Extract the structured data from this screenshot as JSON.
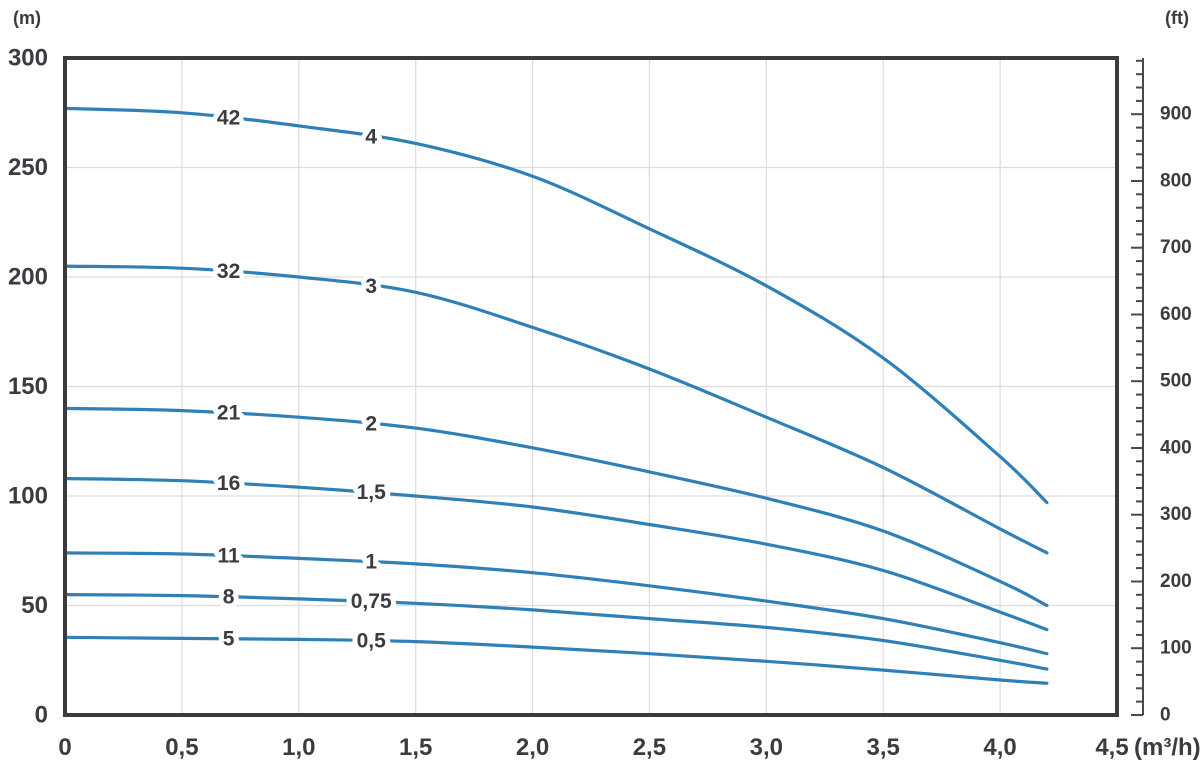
{
  "units": {
    "left_axis": "(m)",
    "right_axis": "(ft)",
    "x_axis": "(m³/h)"
  },
  "colors": {
    "curve": "#2e80b7",
    "frame": "#3a3a3f",
    "grid": "#dcdcdc",
    "right_axis": "#48484d",
    "text": "#3b3b42"
  },
  "chart_data": {
    "type": "line",
    "title": "",
    "xlabel": "(m³/h)",
    "ylabel_left": "(m)",
    "ylabel_right": "(ft)",
    "xlim": [
      0,
      4.5
    ],
    "ylim_m": [
      0,
      300
    ],
    "ylim_ft": [
      0,
      984
    ],
    "grid": true,
    "x_ticks": [
      {
        "v": 0,
        "label": "0"
      },
      {
        "v": 0.5,
        "label": "0,5"
      },
      {
        "v": 1.0,
        "label": "1,0"
      },
      {
        "v": 1.5,
        "label": "1,5"
      },
      {
        "v": 2.0,
        "label": "2,0"
      },
      {
        "v": 2.5,
        "label": "2,5"
      },
      {
        "v": 3.0,
        "label": "3,0"
      },
      {
        "v": 3.5,
        "label": "3,5"
      },
      {
        "v": 4.0,
        "label": "4,0"
      },
      {
        "v": 4.5,
        "label": "4,5"
      }
    ],
    "y_ticks_m": [
      {
        "v": 0,
        "label": "0"
      },
      {
        "v": 50,
        "label": "50"
      },
      {
        "v": 100,
        "label": "100"
      },
      {
        "v": 150,
        "label": "150"
      },
      {
        "v": 200,
        "label": "200"
      },
      {
        "v": 250,
        "label": "250"
      },
      {
        "v": 300,
        "label": "300"
      }
    ],
    "y_ticks_ft_major": [
      0,
      100,
      200,
      300,
      400,
      500,
      600,
      700,
      800,
      900
    ],
    "y_ticks_ft_minor_step": 20,
    "y_ticks_ft_minor_max": 980,
    "grid_x": [
      0.5,
      1.0,
      1.5,
      2.0,
      2.5,
      3.0,
      3.5,
      4.0
    ],
    "grid_y_m": [
      50,
      100,
      150,
      200,
      250
    ],
    "label_positions": {
      "stages_x": 0.7,
      "power_x": 1.31
    },
    "series": [
      {
        "stages_label": "42",
        "power_label": "4",
        "points": [
          [
            0,
            277
          ],
          [
            0.5,
            275
          ],
          [
            1,
            269
          ],
          [
            1.5,
            261
          ],
          [
            2,
            246
          ],
          [
            2.5,
            222
          ],
          [
            3,
            196
          ],
          [
            3.5,
            163
          ],
          [
            4,
            118
          ],
          [
            4.2,
            97
          ]
        ]
      },
      {
        "stages_label": "32",
        "power_label": "3",
        "points": [
          [
            0,
            205
          ],
          [
            0.5,
            204
          ],
          [
            1,
            200
          ],
          [
            1.5,
            193
          ],
          [
            2,
            177
          ],
          [
            2.5,
            158
          ],
          [
            3,
            136
          ],
          [
            3.5,
            113
          ],
          [
            4,
            85
          ],
          [
            4.2,
            74
          ]
        ]
      },
      {
        "stages_label": "21",
        "power_label": "2",
        "points": [
          [
            0,
            140
          ],
          [
            0.5,
            139
          ],
          [
            1,
            136
          ],
          [
            1.5,
            131
          ],
          [
            2,
            122
          ],
          [
            2.5,
            111
          ],
          [
            3,
            99
          ],
          [
            3.5,
            84
          ],
          [
            4,
            61
          ],
          [
            4.2,
            50
          ]
        ]
      },
      {
        "stages_label": "16",
        "power_label": "1,5",
        "points": [
          [
            0,
            108
          ],
          [
            0.5,
            107
          ],
          [
            1,
            104
          ],
          [
            1.5,
            100
          ],
          [
            2,
            95
          ],
          [
            2.5,
            87
          ],
          [
            3,
            78
          ],
          [
            3.5,
            66
          ],
          [
            4,
            47
          ],
          [
            4.2,
            39
          ]
        ]
      },
      {
        "stages_label": "11",
        "power_label": "1",
        "points": [
          [
            0,
            74
          ],
          [
            0.5,
            73.5
          ],
          [
            1,
            71.5
          ],
          [
            1.5,
            69
          ],
          [
            2,
            65
          ],
          [
            2.5,
            59
          ],
          [
            3,
            52
          ],
          [
            3.5,
            44
          ],
          [
            4,
            33
          ],
          [
            4.2,
            28
          ]
        ]
      },
      {
        "stages_label": "8",
        "power_label": "0,75",
        "points": [
          [
            0,
            55
          ],
          [
            0.5,
            54.5
          ],
          [
            1,
            53
          ],
          [
            1.5,
            51
          ],
          [
            2,
            48
          ],
          [
            2.5,
            44
          ],
          [
            3,
            40
          ],
          [
            3.5,
            34
          ],
          [
            4,
            25
          ],
          [
            4.2,
            21
          ]
        ]
      },
      {
        "stages_label": "5",
        "power_label": "0,5",
        "points": [
          [
            0,
            35.5
          ],
          [
            0.5,
            35
          ],
          [
            1,
            34.5
          ],
          [
            1.5,
            33.5
          ],
          [
            2,
            31
          ],
          [
            2.5,
            28
          ],
          [
            3,
            24.5
          ],
          [
            3.5,
            20.5
          ],
          [
            4,
            16
          ],
          [
            4.2,
            14.5
          ]
        ]
      }
    ]
  }
}
